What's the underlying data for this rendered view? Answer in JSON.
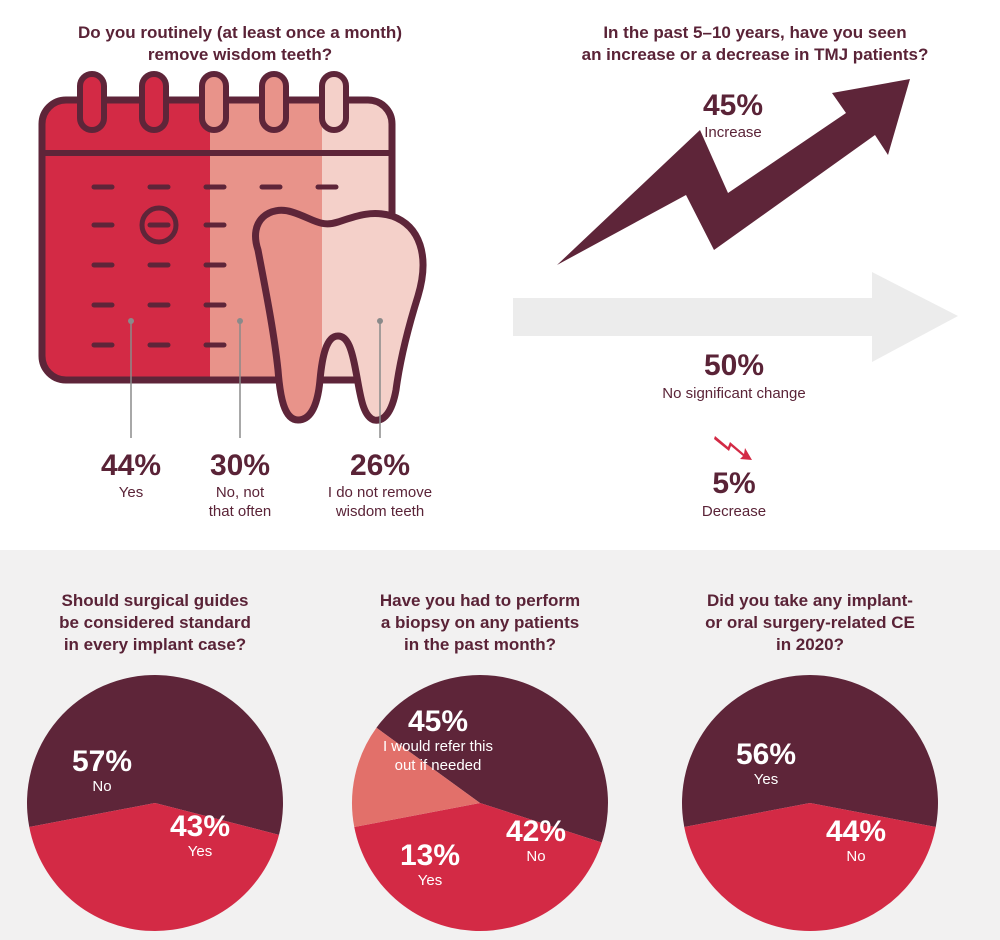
{
  "colors": {
    "maroon": "#5e2539",
    "red": "#d32a45",
    "salmon": "#e8938a",
    "pink": "#f4d0c9",
    "light_gray": "#ececec",
    "coral": "#e2706a"
  },
  "wisdom": {
    "question": [
      "Do you routinely (at least once a month)",
      "remove wisdom teeth?"
    ],
    "items": [
      {
        "pct": "44%",
        "label": [
          "Yes"
        ]
      },
      {
        "pct": "30%",
        "label": [
          "No, not",
          "that often"
        ]
      },
      {
        "pct": "26%",
        "label": [
          "I do not remove",
          "wisdom teeth"
        ]
      }
    ]
  },
  "tmj": {
    "question": [
      "In the past 5–10 years, have you seen",
      "an increase or a decrease in TMJ patients?"
    ],
    "increase": {
      "pct": "45%",
      "label": "Increase"
    },
    "nochange": {
      "pct": "50%",
      "label": "No significant change"
    },
    "decrease": {
      "pct": "5%",
      "label": "Decrease"
    }
  },
  "chart_data": [
    {
      "type": "bar",
      "title": "Do you routinely (at least once a month) remove wisdom teeth?",
      "categories": [
        "Yes",
        "No, not that often",
        "I do not remove wisdom teeth"
      ],
      "values": [
        44,
        30,
        26
      ]
    },
    {
      "type": "bar",
      "title": "In the past 5–10 years, have you seen an increase or a decrease in TMJ patients?",
      "categories": [
        "Increase",
        "No significant change",
        "Decrease"
      ],
      "values": [
        45,
        50,
        5
      ]
    },
    {
      "type": "pie",
      "title": "Should surgical guides be considered standard in every implant case?",
      "slices": [
        {
          "label": "No",
          "value": 57,
          "color": "#5e2539"
        },
        {
          "label": "Yes",
          "value": 43,
          "color": "#d32a45"
        }
      ]
    },
    {
      "type": "pie",
      "title": "Have you had to perform a biopsy on any patients in the past month?",
      "slices": [
        {
          "label": "I would refer this out if needed",
          "value": 45,
          "color": "#5e2539"
        },
        {
          "label": "No",
          "value": 42,
          "color": "#d32a45"
        },
        {
          "label": "Yes",
          "value": 13,
          "color": "#e2706a"
        }
      ]
    },
    {
      "type": "pie",
      "title": "Did you take any implant- or oral surgery-related CE in 2020?",
      "slices": [
        {
          "label": "Yes",
          "value": 56,
          "color": "#5e2539"
        },
        {
          "label": "No",
          "value": 44,
          "color": "#d32a45"
        }
      ]
    }
  ],
  "pies": [
    {
      "question": [
        "Should surgical guides",
        "be considered standard",
        "in every implant case?"
      ],
      "labels": [
        {
          "pct": "57%",
          "text": [
            "No"
          ]
        },
        {
          "pct": "43%",
          "text": [
            "Yes"
          ]
        }
      ]
    },
    {
      "question": [
        "Have you had to perform",
        "a biopsy on any patients",
        "in the past month?"
      ],
      "labels": [
        {
          "pct": "45%",
          "text": [
            "I would refer this",
            "out if needed"
          ]
        },
        {
          "pct": "42%",
          "text": [
            "No"
          ]
        },
        {
          "pct": "13%",
          "text": [
            "Yes"
          ]
        }
      ]
    },
    {
      "question": [
        "Did you take any implant-",
        "or oral surgery-related CE",
        "in 2020?"
      ],
      "labels": [
        {
          "pct": "56%",
          "text": [
            "Yes"
          ]
        },
        {
          "pct": "44%",
          "text": [
            "No"
          ]
        }
      ]
    }
  ]
}
